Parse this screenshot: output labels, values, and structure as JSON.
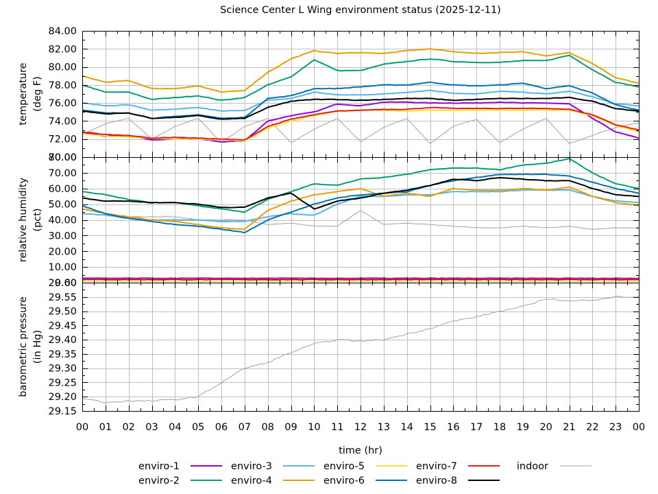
{
  "chart_data": {
    "type": "line",
    "title": "Science Center L Wing environment status (2025-12-11)",
    "xlabel": "time (hr)",
    "x_ticks": [
      "00",
      "01",
      "02",
      "03",
      "04",
      "05",
      "06",
      "07",
      "08",
      "09",
      "10",
      "11",
      "12",
      "13",
      "14",
      "15",
      "16",
      "17",
      "18",
      "19",
      "20",
      "21",
      "22",
      "23",
      "00"
    ],
    "xlim": [
      0,
      24
    ],
    "grid": true,
    "legend_position": "bottom",
    "legend": [
      {
        "name": "enviro-1",
        "color": "#9400d3"
      },
      {
        "name": "enviro-2",
        "color": "#009e73"
      },
      {
        "name": "enviro-3",
        "color": "#56b4e9"
      },
      {
        "name": "enviro-4",
        "color": "#e69f00"
      },
      {
        "name": "enviro-5",
        "color": "#f0e442"
      },
      {
        "name": "enviro-6",
        "color": "#0072b2"
      },
      {
        "name": "enviro-7",
        "color": "#e51e10"
      },
      {
        "name": "enviro-8",
        "color": "#000000"
      },
      {
        "name": "indoor",
        "color": "#a0a0a0"
      }
    ],
    "x": [
      0,
      1,
      2,
      3,
      4,
      5,
      6,
      7,
      8,
      9,
      10,
      11,
      12,
      13,
      14,
      15,
      16,
      17,
      18,
      19,
      20,
      21,
      22,
      23,
      24
    ],
    "panels": [
      {
        "ylabel": [
          "temperature",
          "(deg F)"
        ],
        "ylim": [
          70,
          84
        ],
        "y_ticks": [
          "72.00",
          "74.00",
          "76.00",
          "78.00",
          "80.00",
          "82.00",
          "84.00"
        ],
        "y_tick_values": [
          72,
          74,
          76,
          78,
          80,
          82,
          84
        ],
        "bottom_tick_label": "70.00",
        "series": [
          {
            "name": "enviro-1",
            "values": [
              72.7,
              72.3,
              72.4,
              71.9,
              72.0,
              72.0,
              71.7,
              71.8,
              74.0,
              74.6,
              75.0,
              75.9,
              75.7,
              76.1,
              76.1,
              76.0,
              76.0,
              76.0,
              76.1,
              76.0,
              76.0,
              75.9,
              74.3,
              72.8,
              72.1
            ]
          },
          {
            "name": "enviro-2",
            "values": [
              78.0,
              77.2,
              77.2,
              76.4,
              76.6,
              76.8,
              76.3,
              76.6,
              78.0,
              78.9,
              80.8,
              79.6,
              79.6,
              80.3,
              80.6,
              80.9,
              80.6,
              80.5,
              80.5,
              80.7,
              80.7,
              81.3,
              79.7,
              78.3,
              77.8
            ]
          },
          {
            "name": "enviro-3",
            "values": [
              76.0,
              75.7,
              75.8,
              75.2,
              75.3,
              75.5,
              75.1,
              75.2,
              76.3,
              76.5,
              77.2,
              76.9,
              76.9,
              77.0,
              77.2,
              77.4,
              77.1,
              77.0,
              77.3,
              77.2,
              77.0,
              77.3,
              76.7,
              75.9,
              75.7
            ]
          },
          {
            "name": "enviro-4",
            "values": [
              79.0,
              78.3,
              78.5,
              77.6,
              77.6,
              77.9,
              77.2,
              77.4,
              79.4,
              80.9,
              81.8,
              81.5,
              81.6,
              81.5,
              81.8,
              82.0,
              81.7,
              81.5,
              81.6,
              81.7,
              81.2,
              81.6,
              80.4,
              78.8,
              78.2
            ]
          },
          {
            "name": "enviro-5",
            "values": [
              72.6,
              72.3,
              72.2,
              72.1,
              72.0,
              72.0,
              71.9,
              71.8,
              73.2,
              74.0,
              74.6,
              75.1,
              75.2,
              75.2,
              75.1,
              75.2,
              75.2,
              75.2,
              75.2,
              75.2,
              75.2,
              75.2,
              74.6,
              73.5,
              72.8
            ]
          },
          {
            "name": "enviro-6",
            "values": [
              75.2,
              74.9,
              74.9,
              74.3,
              74.5,
              74.7,
              74.3,
              74.4,
              76.5,
              76.8,
              77.6,
              77.6,
              77.8,
              78.0,
              78.0,
              78.3,
              78.0,
              77.9,
              78.0,
              78.2,
              77.6,
              77.9,
              77.1,
              75.8,
              75.2
            ]
          },
          {
            "name": "enviro-7",
            "values": [
              72.8,
              72.5,
              72.4,
              72.1,
              72.2,
              72.1,
              72.0,
              71.9,
              73.4,
              74.2,
              74.7,
              75.1,
              75.2,
              75.3,
              75.3,
              75.5,
              75.4,
              75.4,
              75.4,
              75.4,
              75.4,
              75.3,
              74.7,
              73.6,
              73.0
            ]
          },
          {
            "name": "enviro-8",
            "values": [
              75.1,
              74.8,
              74.9,
              74.3,
              74.4,
              74.6,
              74.2,
              74.3,
              75.5,
              76.2,
              76.4,
              76.4,
              76.3,
              76.4,
              76.5,
              76.5,
              76.3,
              76.4,
              76.5,
              76.5,
              76.5,
              76.6,
              76.2,
              75.4,
              75.1
            ]
          },
          {
            "name": "indoor",
            "values": [
              72.5,
              73.7,
              74.3,
              72.0,
              73.4,
              74.3,
              71.6,
              73.4,
              74.3,
              71.6,
              73.1,
              74.3,
              71.7,
              73.3,
              74.3,
              71.5,
              73.4,
              74.2,
              71.6,
              73.1,
              74.3,
              71.5,
              72.4,
              73.3,
              73.8
            ]
          }
        ]
      },
      {
        "ylabel": [
          "relative humidity",
          "(pct)"
        ],
        "ylim": [
          0,
          80
        ],
        "y_ticks": [
          "10.00",
          "20.00",
          "30.00",
          "40.00",
          "50.00",
          "60.00",
          "70.00",
          "80.00"
        ],
        "y_tick_values": [
          10,
          20,
          30,
          40,
          50,
          60,
          70,
          80
        ],
        "bottom_tick_label": "0.00",
        "series": [
          {
            "name": "enviro-1",
            "values": [
              2.0,
              2.0,
              2.0,
              2.0,
              2.0,
              2.0,
              2.0,
              2.0,
              2.0,
              2.0,
              2.0,
              2.0,
              2.0,
              2.0,
              2.0,
              2.0,
              2.0,
              2.0,
              2.0,
              2.0,
              2.0,
              2.0,
              2.0,
              2.0,
              2.0
            ]
          },
          {
            "name": "enviro-2",
            "values": [
              58.0,
              56.0,
              53.0,
              51.0,
              51.0,
              49.0,
              47.0,
              45.0,
              53.0,
              58.0,
              63.0,
              62.0,
              66.0,
              67.0,
              69.0,
              72.0,
              73.0,
              73.0,
              72.0,
              75.0,
              76.0,
              79.0,
              70.0,
              63.0,
              60.0
            ]
          },
          {
            "name": "enviro-3",
            "values": [
              44.0,
              43.0,
              41.0,
              40.0,
              40.0,
              40.0,
              39.0,
              39.0,
              42.0,
              44.0,
              43.0,
              50.0,
              55.0,
              55.0,
              56.0,
              56.0,
              58.0,
              58.0,
              58.0,
              59.0,
              59.0,
              59.0,
              55.0,
              52.0,
              51.0
            ]
          },
          {
            "name": "enviro-4",
            "values": [
              47.0,
              44.0,
              42.0,
              40.0,
              39.0,
              37.0,
              35.0,
              34.0,
              46.0,
              52.0,
              56.0,
              58.0,
              60.0,
              55.0,
              57.0,
              55.0,
              60.0,
              59.0,
              59.0,
              60.0,
              59.0,
              61.0,
              55.0,
              51.0,
              49.0
            ]
          },
          {
            "name": "enviro-5",
            "values": [
              0.8,
              0.8,
              0.8,
              0.8,
              0.8,
              0.8,
              0.8,
              0.8,
              0.8,
              0.8,
              0.8,
              0.8,
              0.8,
              0.8,
              0.8,
              0.8,
              0.8,
              0.8,
              0.8,
              0.8,
              0.8,
              0.8,
              0.8,
              0.8,
              0.8
            ]
          },
          {
            "name": "enviro-6",
            "values": [
              49.0,
              44.0,
              41.0,
              39.0,
              37.0,
              36.0,
              34.0,
              32.0,
              40.0,
              45.0,
              50.0,
              54.0,
              56.0,
              57.0,
              58.0,
              62.0,
              65.0,
              67.0,
              69.0,
              69.0,
              69.0,
              68.0,
              64.0,
              60.0,
              57.0
            ]
          },
          {
            "name": "enviro-7",
            "values": [
              2.8,
              2.8,
              2.8,
              2.8,
              2.8,
              2.8,
              2.8,
              2.8,
              2.8,
              2.8,
              2.8,
              2.8,
              2.8,
              2.8,
              2.8,
              2.8,
              2.8,
              2.8,
              2.8,
              2.8,
              2.8,
              2.8,
              2.8,
              2.8,
              2.8
            ]
          },
          {
            "name": "enviro-8",
            "values": [
              54.0,
              52.0,
              52.0,
              51.0,
              51.0,
              50.0,
              48.0,
              48.0,
              54.0,
              57.0,
              47.0,
              52.0,
              54.0,
              57.0,
              59.0,
              62.0,
              66.0,
              65.0,
              67.0,
              66.0,
              65.0,
              65.0,
              60.0,
              56.0,
              55.0
            ]
          },
          {
            "name": "indoor",
            "values": [
              44.0,
              43.0,
              42.0,
              42.0,
              42.0,
              40.0,
              40.0,
              40.0,
              37.0,
              38.0,
              36.0,
              36.0,
              46.0,
              37.0,
              38.0,
              37.0,
              36.0,
              35.0,
              35.0,
              36.0,
              35.0,
              36.0,
              34.0,
              35.0,
              35.0
            ]
          }
        ]
      },
      {
        "ylabel": [
          "barometric pressure",
          "(in Hg)"
        ],
        "ylim": [
          29.15,
          29.6
        ],
        "y_ticks": [
          "29.15",
          "29.20",
          "29.25",
          "29.30",
          "29.35",
          "29.40",
          "29.45",
          "29.50",
          "29.55"
        ],
        "y_tick_values": [
          29.15,
          29.2,
          29.25,
          29.3,
          29.35,
          29.4,
          29.45,
          29.5,
          29.55
        ],
        "top_tick_label": "29.60",
        "series": [
          {
            "name": "indoor",
            "values": [
              29.195,
              29.18,
              29.185,
              29.185,
              29.19,
              29.2,
              29.25,
              29.3,
              29.32,
              29.355,
              29.385,
              29.4,
              29.395,
              29.4,
              29.42,
              29.44,
              29.465,
              29.48,
              29.5,
              29.515,
              29.545,
              29.535,
              29.54,
              29.55,
              29.55
            ]
          }
        ]
      }
    ]
  }
}
